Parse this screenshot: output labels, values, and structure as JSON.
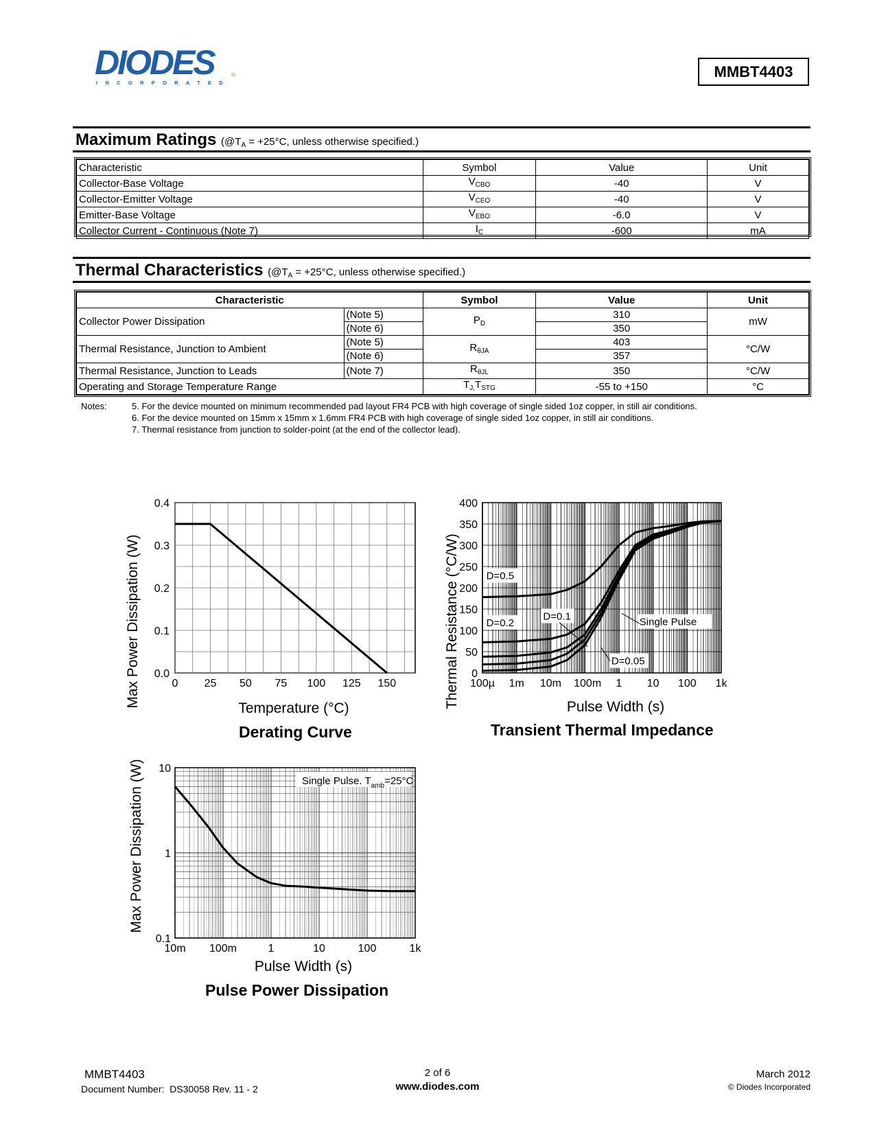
{
  "header": {
    "logo_text": "DIODES",
    "logo_sub": "INCORPORATED",
    "part_number": "MMBT4403"
  },
  "max_ratings": {
    "title": "Maximum Ratings",
    "condition_pre": "(@T",
    "condition_sub": "A",
    "condition_post": " = +25°C, unless otherwise specified.)",
    "headers": [
      "Characteristic",
      "Symbol",
      "Value",
      "Unit"
    ],
    "rows": [
      {
        "characteristic": "Collector-Base Voltage",
        "symbol": "V",
        "symbol_sub": "CBO",
        "value": "-40",
        "unit": "V"
      },
      {
        "characteristic": "Collector-Emitter Voltage",
        "symbol": "V",
        "symbol_sub": "CEO",
        "value": "-40",
        "unit": "V"
      },
      {
        "characteristic": "Emitter-Base Voltage",
        "symbol": "V",
        "symbol_sub": "EBO",
        "value": "-6.0",
        "unit": "V"
      },
      {
        "characteristic": "Collector Current - Continuous (Note 7)",
        "symbol": "I",
        "symbol_sub": "C",
        "value": "-600",
        "unit": "mA"
      }
    ]
  },
  "thermal": {
    "title": "Thermal Characteristics",
    "condition_pre": "(@T",
    "condition_sub": "A",
    "condition_post": " = +25°C, unless otherwise specified.)",
    "headers": [
      "Characteristic",
      "Symbol",
      "Value",
      "Unit"
    ],
    "pd": {
      "characteristic": "Collector Power Dissipation",
      "note_a": "(Note 5)",
      "note_b": "(Note 6)",
      "symbol": "P",
      "symbol_sub": "D",
      "value_a": "310",
      "value_b": "350",
      "unit": "mW"
    },
    "rja": {
      "characteristic": "Thermal Resistance, Junction to Ambient",
      "note_a": "(Note 5)",
      "note_b": "(Note 6)",
      "symbol": "R",
      "symbol_sub": "θJA",
      "value_a": "403",
      "value_b": "357",
      "unit": "°C/W"
    },
    "rjl": {
      "characteristic": "Thermal Resistance, Junction to Leads",
      "note": "(Note 7)",
      "symbol": "R",
      "symbol_sub": "θJL",
      "value": "350",
      "unit": "°C/W"
    },
    "temp": {
      "characteristic": "Operating and Storage Temperature Range",
      "symbol_a": "T",
      "symbol_a_sub": "J,",
      "symbol_b": "T",
      "symbol_b_sub": "STG",
      "value": "-55 to +150",
      "unit": "°C"
    }
  },
  "notes": {
    "label": "Notes:",
    "items": [
      "5. For the device mounted on minimum recommended pad layout FR4 PCB with high coverage of single sided 1oz copper, in still air conditions.",
      "6. For the device mounted on 15mm x 15mm x 1.6mm FR4 PCB with high coverage of single sided 1oz copper, in still air conditions.",
      "7. Thermal resistance from junction to solder-point (at the end of the collector lead)."
    ]
  },
  "chart_data": [
    {
      "type": "line",
      "title": "Derating Curve",
      "xlabel": "Temperature (°C)",
      "ylabel": "Max Power Dissipation (W)",
      "xlim": [
        0,
        170
      ],
      "ylim": [
        0,
        0.4
      ],
      "xticks": [
        "0",
        "25",
        "50",
        "75",
        "100",
        "125",
        "150"
      ],
      "yticks": [
        "0.0",
        "0.1",
        "0.2",
        "0.3",
        "0.4"
      ],
      "grid": true,
      "x": [
        0,
        25,
        150
      ],
      "y": [
        0.35,
        0.35,
        0
      ]
    },
    {
      "type": "line",
      "title": "Transient Thermal Impedance",
      "xlabel": "Pulse Width (s)",
      "ylabel": "Thermal Resistance (°C/W)",
      "xscale": "log",
      "xlim": [
        0.0001,
        1000
      ],
      "ylim": [
        0,
        400
      ],
      "xticks": [
        "100µ",
        "1m",
        "10m",
        "100m",
        "1",
        "10",
        "100",
        "1k"
      ],
      "yticks": [
        "0",
        "50",
        "100",
        "150",
        "200",
        "250",
        "300",
        "350",
        "400"
      ],
      "grid": true,
      "x": [
        0.0001,
        0.001,
        0.01,
        0.03,
        0.1,
        0.3,
        1,
        3,
        10,
        30,
        100,
        300,
        1000
      ],
      "series": [
        {
          "name": "D=0.5",
          "values": [
            178,
            180,
            185,
            195,
            215,
            250,
            300,
            330,
            340,
            345,
            352,
            356,
            357
          ]
        },
        {
          "name": "D=0.2",
          "values": [
            72,
            74,
            80,
            90,
            115,
            165,
            240,
            300,
            325,
            335,
            347,
            355,
            357
          ]
        },
        {
          "name": "D=0.1",
          "values": [
            38,
            40,
            48,
            60,
            90,
            150,
            230,
            295,
            320,
            332,
            345,
            354,
            357
          ]
        },
        {
          "name": "D=0.05",
          "values": [
            20,
            22,
            30,
            45,
            78,
            140,
            225,
            292,
            318,
            330,
            344,
            354,
            357
          ]
        },
        {
          "name": "Single Pulse",
          "values": [
            5,
            7,
            15,
            30,
            65,
            130,
            218,
            288,
            315,
            328,
            343,
            353,
            357
          ]
        }
      ],
      "annotations": [
        "D=0.5",
        "D=0.2",
        "D=0.1",
        "D=0.05",
        "Single Pulse"
      ]
    },
    {
      "type": "line",
      "title": "Pulse Power Dissipation",
      "xlabel": "Pulse Width (s)",
      "ylabel": "Max Power Dissipation (W)",
      "xscale": "log",
      "yscale": "log",
      "xlim": [
        0.01,
        1000
      ],
      "ylim": [
        0.1,
        10
      ],
      "xticks": [
        "10m",
        "100m",
        "1",
        "10",
        "100",
        "1k"
      ],
      "yticks": [
        "0.1",
        "1",
        "10"
      ],
      "grid": true,
      "annotation_pre": "Single Pulse. T",
      "annotation_sub": "amb",
      "annotation_post": "=25°C",
      "x": [
        0.01,
        0.02,
        0.05,
        0.1,
        0.2,
        0.5,
        1,
        2,
        5,
        10,
        30,
        100,
        300,
        1000
      ],
      "y": [
        6.0,
        3.8,
        2.0,
        1.15,
        0.75,
        0.52,
        0.44,
        0.41,
        0.4,
        0.39,
        0.375,
        0.36,
        0.355,
        0.355
      ]
    }
  ],
  "footer": {
    "part": "MMBT4403",
    "doc_label": "Document Number:",
    "doc_number": "DS30058 Rev. 11 - 2",
    "page": "2 of 6",
    "website": "www.diodes.com",
    "date": "March 2012",
    "copyright": "© Diodes Incorporated"
  }
}
